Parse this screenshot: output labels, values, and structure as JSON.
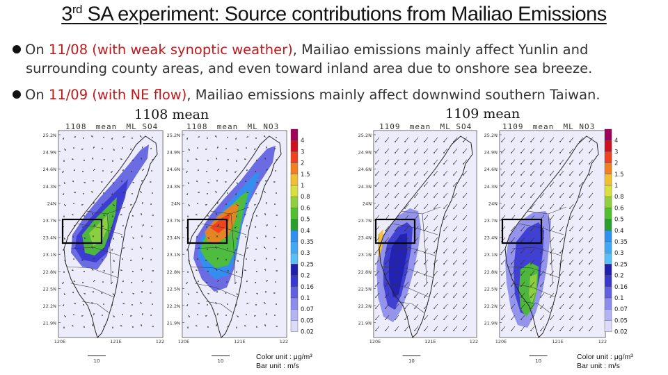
{
  "slide": {
    "title_prefix": "3",
    "title_sup": "rd",
    "title_rest": " SA experiment: Source contributions from Mailiao Emissions",
    "bullet1_on": "On ",
    "bullet1_hl": "11/08 (with weak synoptic weather)",
    "bullet1_rest": ", Mailiao emissions mainly affect Yunlin and",
    "bullet1_line2": "surrounding county areas, and even toward inland area due to onshore sea breeze.",
    "bullet2_on": "On ",
    "bullet2_hl": "11/09 (with NE flow)",
    "bullet2_rest": ", Mailiao emissions mainly affect downwind southern Taiwan.",
    "highlight_color": "#c0171a"
  },
  "groups": [
    {
      "heading": "1108 mean",
      "unit1": "Color unit : μg/m³",
      "unit2": "Bar unit : m/s",
      "maps": [
        {
          "day": "1108",
          "stat": "mean",
          "species": "ML_SO4"
        },
        {
          "day": "1108",
          "stat": "mean",
          "species": "ML_NO3"
        }
      ]
    },
    {
      "heading": "1109 mean",
      "unit1": "Color unit : μg/m³",
      "unit2": "Bar unit : m/s",
      "maps": [
        {
          "day": "1109",
          "stat": "mean",
          "species": "ML_SO4"
        },
        {
          "day": "1109",
          "stat": "mean",
          "species": "ML_NO3"
        }
      ]
    }
  ],
  "map_axes": {
    "lat_labels": [
      "25.2N",
      "24.9N",
      "24.6N",
      "24.3N",
      "24N",
      "23.7N",
      "23.4N",
      "23.1N",
      "22.8N",
      "22.5N",
      "22.2N",
      "21.9N"
    ],
    "lon_labels": [
      "120E",
      "121E",
      "122"
    ],
    "vector_ref": "10"
  },
  "colorbar": {
    "labels": [
      "4",
      "3",
      "2",
      "1.5",
      "1",
      "0.8",
      "0.6",
      "0.5",
      "0.4",
      "0.35",
      "0.3",
      "0.25",
      "0.2",
      "0.16",
      "0.1",
      "0.07",
      "0.05",
      "0.02"
    ],
    "colors": [
      "#a0005a",
      "#d01020",
      "#f04020",
      "#f08020",
      "#f0c030",
      "#d8e040",
      "#90d040",
      "#50c030",
      "#2aa02a",
      "#3090f0",
      "#40a8f8",
      "#58c0f8",
      "#2020b0",
      "#3838d0",
      "#6060e0",
      "#8c8cec",
      "#b4b4f4",
      "#dcdcfa"
    ]
  }
}
